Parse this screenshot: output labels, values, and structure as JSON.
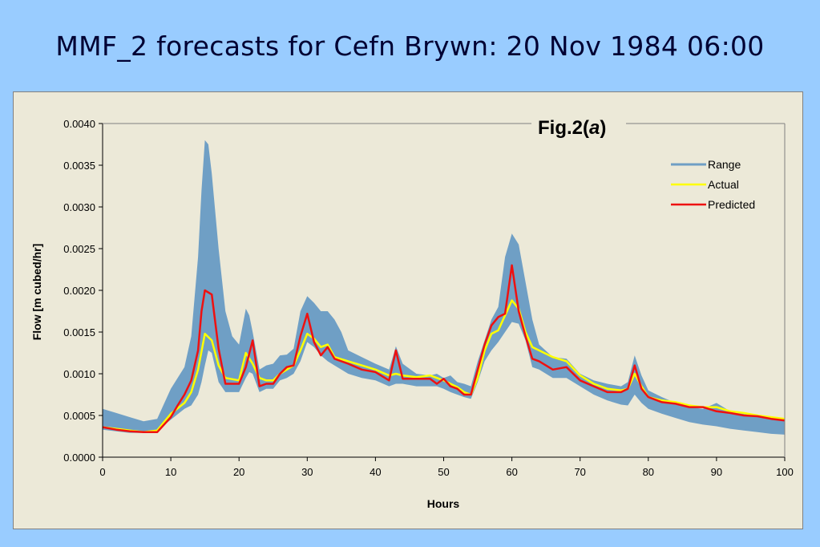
{
  "slide": {
    "title": "MMF_2 forecasts for Cefn Brywn: 20 Nov 1984 06:00"
  },
  "chart_data": {
    "type": "line",
    "figure_label_prefix": "Fig.2(",
    "figure_label_letter": "a",
    "figure_label_suffix": ")",
    "xlabel": "Hours",
    "ylabel": "Flow [m cubed/hr]",
    "xlim": [
      0,
      100
    ],
    "ylim": [
      0,
      0.004
    ],
    "xticks": [
      "0",
      "10",
      "20",
      "30",
      "40",
      "50",
      "60",
      "70",
      "80",
      "90",
      "100"
    ],
    "yticks": [
      "0.0000",
      "0.0005",
      "0.0010",
      "0.0015",
      "0.0020",
      "0.0025",
      "0.0030",
      "0.0035",
      "0.0040"
    ],
    "legend_position": "top-right",
    "grid": false,
    "colors": {
      "range": "#6f9fc5",
      "actual": "#ffff00",
      "predicted": "#ee1111",
      "plot_background": "#ece9d8"
    },
    "range": {
      "name": "Range",
      "x": [
        0,
        2,
        4,
        6,
        8,
        10,
        12,
        13,
        14,
        14.5,
        15,
        15.5,
        16,
        17,
        18,
        19,
        20,
        21,
        21.5,
        22,
        23,
        24,
        25,
        26,
        27,
        28,
        29,
        30,
        31,
        32,
        33,
        34,
        35,
        36,
        38,
        40,
        42,
        43,
        44,
        46,
        48,
        49,
        50,
        51,
        52,
        53,
        54,
        55,
        56,
        57,
        58,
        59,
        60,
        61,
        62,
        63,
        64,
        66,
        68,
        70,
        72,
        74,
        76,
        77,
        78,
        79,
        80,
        82,
        84,
        86,
        88,
        90,
        92,
        94,
        96,
        98,
        100
      ],
      "upper": [
        0.00058,
        0.00053,
        0.00048,
        0.00043,
        0.00046,
        0.00082,
        0.00108,
        0.00145,
        0.0024,
        0.0032,
        0.0038,
        0.00375,
        0.0034,
        0.0025,
        0.00175,
        0.00145,
        0.00135,
        0.00178,
        0.0017,
        0.0015,
        0.00105,
        0.0011,
        0.00112,
        0.00122,
        0.00123,
        0.0013,
        0.00175,
        0.00193,
        0.00185,
        0.00175,
        0.00175,
        0.00165,
        0.0015,
        0.00128,
        0.0012,
        0.00112,
        0.00105,
        0.00133,
        0.00112,
        0.001,
        0.00098,
        0.001,
        0.00095,
        0.00098,
        0.0009,
        0.00088,
        0.00085,
        0.00115,
        0.0014,
        0.00165,
        0.0018,
        0.0024,
        0.00268,
        0.00255,
        0.0021,
        0.00165,
        0.00135,
        0.0012,
        0.00118,
        0.001,
        0.00092,
        0.00088,
        0.00085,
        0.0009,
        0.00122,
        0.00098,
        0.0008,
        0.00072,
        0.00065,
        0.0006,
        0.00058,
        0.00065,
        0.00055,
        0.00052,
        0.0005,
        0.00048,
        0.00045
      ],
      "lower": [
        0.00033,
        0.00031,
        0.00029,
        0.00029,
        0.00032,
        0.00045,
        0.00058,
        0.00062,
        0.00075,
        0.0009,
        0.0011,
        0.00128,
        0.00125,
        0.0009,
        0.00078,
        0.00078,
        0.00078,
        0.00095,
        0.00102,
        0.001,
        0.00078,
        0.00082,
        0.00082,
        0.00092,
        0.00095,
        0.001,
        0.00115,
        0.00138,
        0.00132,
        0.00122,
        0.00115,
        0.0011,
        0.00105,
        0.001,
        0.00095,
        0.00092,
        0.00085,
        0.00088,
        0.00088,
        0.00085,
        0.00085,
        0.00085,
        0.00082,
        0.00078,
        0.00075,
        0.00072,
        0.0007,
        0.0009,
        0.00115,
        0.00128,
        0.00138,
        0.0015,
        0.00162,
        0.0016,
        0.0014,
        0.00108,
        0.00105,
        0.00095,
        0.00095,
        0.00085,
        0.00075,
        0.00068,
        0.00063,
        0.00062,
        0.00075,
        0.00065,
        0.00058,
        0.00052,
        0.00047,
        0.00042,
        0.00039,
        0.00037,
        0.00034,
        0.00032,
        0.0003,
        0.00028,
        0.00027
      ]
    },
    "series": [
      {
        "name": "Actual",
        "x": [
          0,
          2,
          4,
          6,
          8,
          10,
          12,
          13,
          14,
          15,
          16,
          17,
          18,
          20,
          21,
          22,
          23,
          24,
          25,
          26,
          28,
          29,
          30,
          31,
          32,
          33,
          34,
          36,
          38,
          40,
          42,
          43,
          44,
          46,
          48,
          49,
          50,
          51,
          52,
          53,
          54,
          55,
          56,
          57,
          58,
          59,
          60,
          61,
          62,
          63,
          64,
          66,
          68,
          70,
          72,
          74,
          76,
          77,
          78,
          79,
          80,
          82,
          84,
          86,
          88,
          90,
          92,
          94,
          96,
          98,
          100
        ],
        "values": [
          0.00036,
          0.00034,
          0.00032,
          0.0003,
          0.00032,
          0.00052,
          0.00065,
          0.00078,
          0.00105,
          0.00148,
          0.0014,
          0.0011,
          0.00095,
          0.00092,
          0.00125,
          0.00112,
          0.00095,
          0.00092,
          0.00092,
          0.001,
          0.0011,
          0.00128,
          0.00148,
          0.00142,
          0.00132,
          0.00135,
          0.0012,
          0.00115,
          0.0011,
          0.00105,
          0.00098,
          0.001,
          0.00098,
          0.00096,
          0.00098,
          0.00095,
          0.00092,
          0.00088,
          0.00084,
          0.00078,
          0.00075,
          0.00095,
          0.00128,
          0.00148,
          0.00152,
          0.0017,
          0.00188,
          0.00178,
          0.0015,
          0.00132,
          0.00128,
          0.0012,
          0.00115,
          0.00098,
          0.00088,
          0.00082,
          0.0008,
          0.00082,
          0.001,
          0.00085,
          0.00072,
          0.00068,
          0.00066,
          0.00062,
          0.0006,
          0.0006,
          0.00055,
          0.00053,
          0.0005,
          0.00048,
          0.00046
        ]
      },
      {
        "name": "Predicted",
        "x": [
          0,
          2,
          4,
          6,
          8,
          10,
          11,
          12,
          13,
          14,
          14.5,
          15,
          16,
          17,
          18,
          20,
          21,
          22,
          23,
          24,
          25,
          26,
          27,
          28,
          29,
          30,
          31,
          32,
          33,
          34,
          36,
          38,
          40,
          42,
          43,
          44,
          46,
          48,
          49,
          50,
          51,
          52,
          53,
          54,
          55,
          56,
          57,
          58,
          59,
          60,
          61,
          62,
          63,
          64,
          66,
          68,
          70,
          72,
          74,
          76,
          77,
          78,
          79,
          80,
          82,
          84,
          86,
          88,
          90,
          92,
          94,
          96,
          98,
          100
        ],
        "values": [
          0.00036,
          0.00033,
          0.00031,
          0.0003,
          0.0003,
          0.00048,
          0.00062,
          0.00075,
          0.00092,
          0.00128,
          0.00175,
          0.002,
          0.00195,
          0.0013,
          0.00088,
          0.00088,
          0.00108,
          0.0014,
          0.00085,
          0.00088,
          0.00088,
          0.001,
          0.00108,
          0.0011,
          0.00145,
          0.00172,
          0.00138,
          0.00122,
          0.00132,
          0.00118,
          0.00112,
          0.00105,
          0.00102,
          0.00092,
          0.00128,
          0.00094,
          0.00094,
          0.00094,
          0.00088,
          0.00094,
          0.00085,
          0.00082,
          0.00075,
          0.00075,
          0.00105,
          0.00135,
          0.00158,
          0.00168,
          0.00172,
          0.0023,
          0.00175,
          0.00145,
          0.00118,
          0.00115,
          0.00105,
          0.00108,
          0.00092,
          0.00085,
          0.00078,
          0.00078,
          0.00082,
          0.0011,
          0.00082,
          0.00072,
          0.00066,
          0.00064,
          0.0006,
          0.0006,
          0.00055,
          0.00053,
          0.0005,
          0.00049,
          0.00046,
          0.00044
        ]
      }
    ]
  }
}
